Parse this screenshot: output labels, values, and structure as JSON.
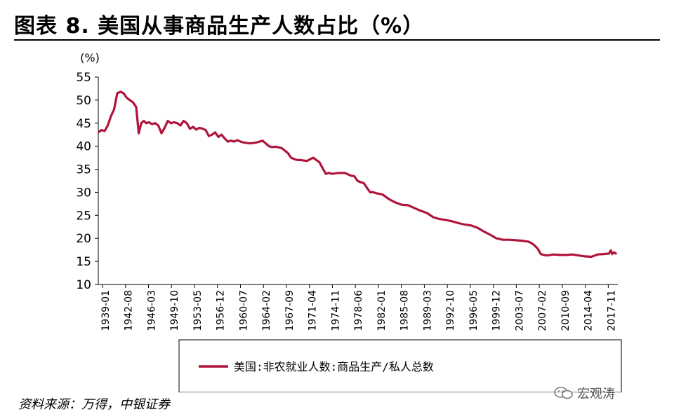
{
  "title": "图表 8. 美国从事商品生产人数占比（%）",
  "source": "资料来源：万得，中银证券",
  "watermark": "宏观涛",
  "colors": {
    "line": "#b0143b",
    "text": "#000000",
    "axis": "#000000"
  },
  "chart_data": {
    "type": "line",
    "ylabel": "(%)",
    "xlabel": "",
    "ylim": [
      10,
      55
    ],
    "yticks": [
      10,
      15,
      20,
      25,
      30,
      35,
      40,
      45,
      50,
      55
    ],
    "xticks": [
      "1939-01",
      "1942-08",
      "1946-03",
      "1949-10",
      "1953-05",
      "1956-12",
      "1960-07",
      "1964-02",
      "1967-09",
      "1971-04",
      "1974-11",
      "1978-06",
      "1982-01",
      "1985-08",
      "1989-03",
      "1992-10",
      "1996-05",
      "1999-12",
      "2003-07",
      "2007-02",
      "2010-09",
      "2014-04",
      "2017-11"
    ],
    "legend_position": "bottom",
    "grid": false,
    "series": [
      {
        "name": "美国:非农就业人数:商品生产/私人总数",
        "x": [
          1939.0,
          1939.5,
          1940.0,
          1940.5,
          1941.0,
          1941.5,
          1942.0,
          1942.5,
          1943.0,
          1943.5,
          1944.0,
          1944.5,
          1945.0,
          1945.4,
          1945.8,
          1946.2,
          1946.6,
          1947.0,
          1947.5,
          1948.0,
          1948.5,
          1949.0,
          1949.5,
          1950.0,
          1950.5,
          1951.0,
          1951.5,
          1952.0,
          1952.5,
          1953.0,
          1953.5,
          1954.0,
          1954.5,
          1955.0,
          1955.5,
          1956.0,
          1956.5,
          1957.0,
          1957.5,
          1958.0,
          1958.5,
          1959.0,
          1959.5,
          1960.0,
          1960.5,
          1961.0,
          1961.5,
          1962.0,
          1963.0,
          1964.0,
          1965.0,
          1966.0,
          1966.5,
          1967.0,
          1968.0,
          1969.0,
          1969.5,
          1970.0,
          1970.5,
          1971.0,
          1972.0,
          1973.0,
          1973.5,
          1974.0,
          1974.5,
          1975.0,
          1975.5,
          1976.0,
          1977.0,
          1978.0,
          1979.0,
          1979.5,
          1980.0,
          1980.5,
          1981.0,
          1981.5,
          1982.0,
          1982.5,
          1983.0,
          1984.0,
          1985.0,
          1986.0,
          1987.0,
          1988.0,
          1989.0,
          1990.0,
          1991.0,
          1992.0,
          1993.0,
          1994.0,
          1995.0,
          1996.0,
          1997.0,
          1998.0,
          1999.0,
          2000.0,
          2001.0,
          2002.0,
          2003.0,
          2004.0,
          2005.0,
          2006.0,
          2007.0,
          2007.5,
          2008.0,
          2008.5,
          2009.0,
          2009.5,
          2010.0,
          2011.0,
          2012.0,
          2013.0,
          2014.0,
          2015.0,
          2016.0,
          2017.0,
          2018.0,
          2019.0,
          2019.8,
          2020.1,
          2020.3,
          2020.6,
          2021.0
        ],
        "values": [
          43.0,
          43.5,
          43.3,
          44.5,
          46.5,
          48.0,
          51.5,
          51.8,
          51.5,
          50.5,
          50.0,
          49.5,
          48.5,
          42.8,
          45.0,
          45.5,
          45.0,
          45.2,
          44.8,
          45.0,
          44.5,
          42.8,
          44.0,
          45.5,
          45.0,
          45.2,
          45.0,
          44.5,
          45.5,
          45.0,
          43.8,
          44.2,
          43.6,
          44.0,
          43.8,
          43.5,
          42.2,
          42.5,
          43.0,
          42.0,
          42.5,
          41.7,
          41.0,
          41.2,
          41.0,
          41.3,
          41.0,
          40.8,
          40.6,
          40.8,
          41.2,
          40.0,
          39.8,
          39.9,
          39.6,
          38.5,
          37.5,
          37.2,
          37.0,
          37.0,
          36.8,
          37.5,
          37.0,
          36.5,
          35.2,
          34.0,
          34.2,
          34.0,
          34.2,
          34.2,
          33.6,
          33.5,
          32.5,
          32.2,
          32.0,
          31.0,
          30.0,
          30.0,
          29.8,
          29.5,
          28.5,
          27.8,
          27.3,
          27.2,
          26.6,
          26.0,
          25.5,
          24.6,
          24.2,
          24.0,
          23.7,
          23.3,
          23.0,
          22.8,
          22.3,
          21.5,
          20.8,
          20.0,
          19.7,
          19.7,
          19.6,
          19.5,
          19.3,
          19.0,
          18.5,
          17.8,
          16.6,
          16.4,
          16.3,
          16.5,
          16.4,
          16.4,
          16.5,
          16.3,
          16.1,
          16.0,
          16.5,
          16.6,
          16.7,
          17.4,
          16.6,
          17.0,
          16.6
        ]
      }
    ]
  }
}
